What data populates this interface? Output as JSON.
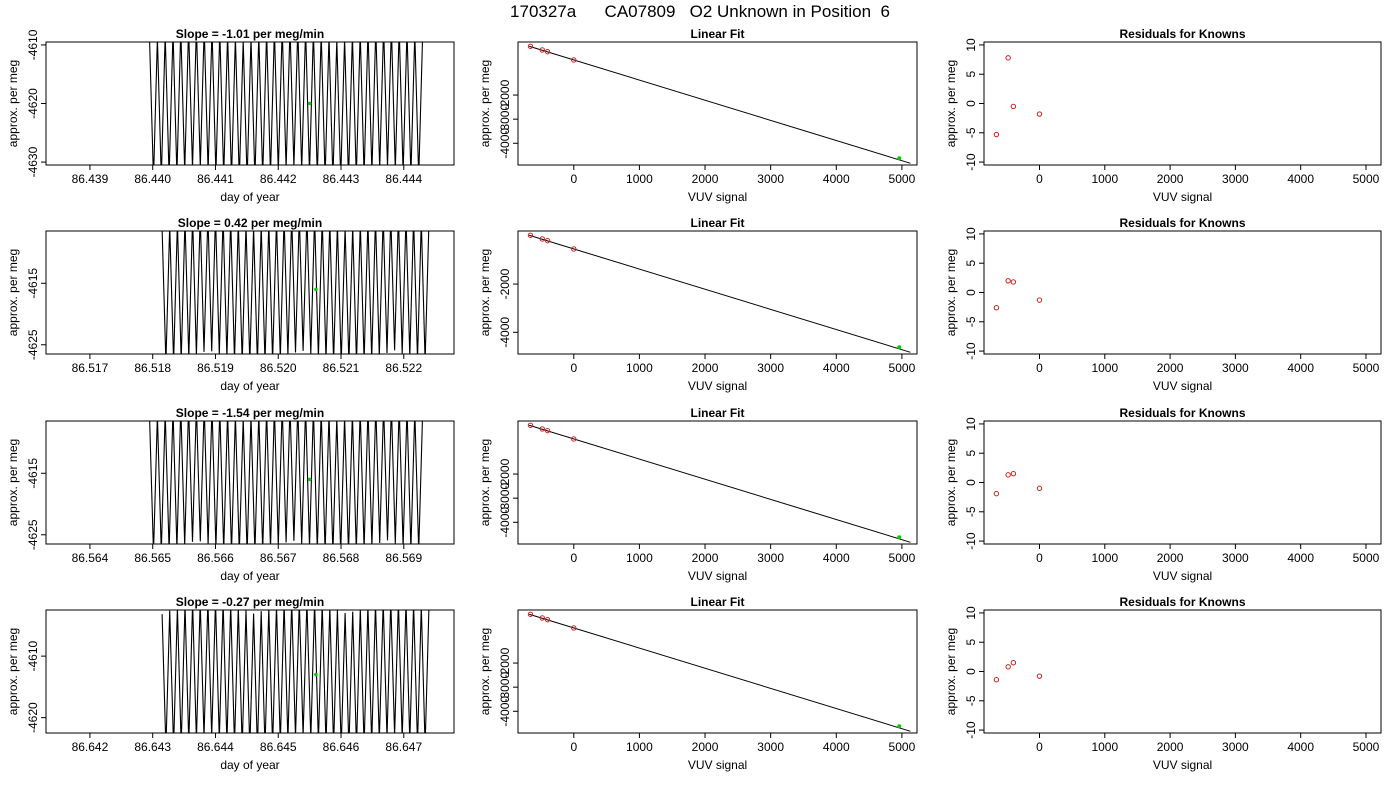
{
  "page_title": "170327a      CA07809   O2 Unknown in Position  6",
  "colors": {
    "trace": "#000000",
    "unknown_point": "#00cc00",
    "known_point": "#cc2222",
    "frame": "#000000"
  },
  "chart_data": [
    {
      "type": "line",
      "title": "Slope =  -1.01  per meg/min",
      "xlabel": "day of year",
      "ylabel": "approx. per meg",
      "xlim": [
        86.4383,
        86.4448
      ],
      "ylim": [
        -4630.5,
        -4609.5
      ],
      "x_ticks": [
        "86.439",
        "86.440",
        "86.441",
        "86.442",
        "86.443",
        "86.444"
      ],
      "x_tick_values": [
        86.439,
        86.44,
        86.441,
        86.442,
        86.443,
        86.444
      ],
      "y_ticks": [
        "-4610",
        "-4620",
        "-4630"
      ],
      "y_tick_values": [
        -4610,
        -4620,
        -4630
      ],
      "series": [
        {
          "x_start": 86.43995,
          "x_end": 86.4443,
          "y_center": -4620,
          "amplitude": 13
        }
      ],
      "highlight": {
        "x": 86.4425,
        "y": -4620
      }
    },
    {
      "type": "scatter",
      "title": "Linear Fit",
      "xlabel": "VUV signal",
      "ylabel": "approx. per meg",
      "xlim": [
        -850,
        5230
      ],
      "ylim": [
        -4900,
        200
      ],
      "x_ticks": [
        "0",
        "1000",
        "2000",
        "3000",
        "4000",
        "5000"
      ],
      "x_tick_values": [
        0,
        1000,
        2000,
        3000,
        4000,
        5000
      ],
      "y_ticks": [
        "-2000",
        "-3000",
        "-4000"
      ],
      "y_tick_values": [
        -2000,
        -3000,
        -4000
      ],
      "fit_line": {
        "x": [
          -680,
          5130
        ],
        "y": [
          25,
          -4830
        ]
      },
      "series": [
        {
          "x": [
            -660,
            -480,
            -400,
            0
          ],
          "y": [
            23,
            -130,
            -200,
            -545
          ]
        }
      ],
      "highlight": {
        "x": 4960,
        "y": -4620
      }
    },
    {
      "type": "scatter",
      "title": "Residuals for Knowns",
      "xlabel": "VUV signal",
      "ylabel": "approx. per meg",
      "xlim": [
        -850,
        5230
      ],
      "ylim": [
        -10.5,
        10.5
      ],
      "x_ticks": [
        "0",
        "1000",
        "2000",
        "3000",
        "4000",
        "5000"
      ],
      "x_tick_values": [
        0,
        1000,
        2000,
        3000,
        4000,
        5000
      ],
      "y_ticks": [
        "10",
        "5",
        "0",
        "-5",
        "-10"
      ],
      "y_tick_values": [
        10,
        5,
        0,
        -5,
        -10
      ],
      "series": [
        {
          "x": [
            -660,
            -480,
            -400,
            0
          ],
          "y": [
            -5.3,
            7.8,
            -0.5,
            -1.8
          ]
        }
      ]
    },
    {
      "type": "line",
      "title": "Slope =  0.42  per meg/min",
      "xlabel": "day of year",
      "ylabel": "approx. per meg",
      "xlim": [
        86.5163,
        86.5228
      ],
      "ylim": [
        -4626.5,
        -4606.5
      ],
      "x_ticks": [
        "86.517",
        "86.518",
        "86.519",
        "86.520",
        "86.521",
        "86.522"
      ],
      "x_tick_values": [
        86.517,
        86.518,
        86.519,
        86.52,
        86.521,
        86.522
      ],
      "y_ticks": [
        "-4615",
        "-4625"
      ],
      "y_tick_values": [
        -4615,
        -4625
      ],
      "series": [
        {
          "x_start": 86.51815,
          "x_end": 86.5224,
          "y_center": -4616,
          "amplitude": 12
        }
      ],
      "highlight": {
        "x": 86.5206,
        "y": -4616
      }
    },
    {
      "type": "scatter",
      "title": "Linear Fit",
      "xlabel": "VUV signal",
      "ylabel": "approx. per meg",
      "xlim": [
        -850,
        5230
      ],
      "ylim": [
        -4900,
        200
      ],
      "x_ticks": [
        "0",
        "1000",
        "2000",
        "3000",
        "4000",
        "5000"
      ],
      "x_tick_values": [
        0,
        1000,
        2000,
        3000,
        4000,
        5000
      ],
      "y_ticks": [
        "-2000",
        "-4000"
      ],
      "y_tick_values": [
        -2000,
        -4000
      ],
      "fit_line": {
        "x": [
          -680,
          5130
        ],
        "y": [
          25,
          -4830
        ]
      },
      "series": [
        {
          "x": [
            -660,
            -480,
            -400,
            0
          ],
          "y": [
            23,
            -130,
            -200,
            -545
          ]
        }
      ],
      "highlight": {
        "x": 4960,
        "y": -4620
      }
    },
    {
      "type": "scatter",
      "title": "Residuals for Knowns",
      "xlabel": "VUV signal",
      "ylabel": "approx. per meg",
      "xlim": [
        -850,
        5230
      ],
      "ylim": [
        -10.5,
        10.5
      ],
      "x_ticks": [
        "0",
        "1000",
        "2000",
        "3000",
        "4000",
        "5000"
      ],
      "x_tick_values": [
        0,
        1000,
        2000,
        3000,
        4000,
        5000
      ],
      "y_ticks": [
        "10",
        "5",
        "0",
        "-5",
        "-10"
      ],
      "y_tick_values": [
        10,
        5,
        0,
        -5,
        -10
      ],
      "series": [
        {
          "x": [
            -660,
            -480,
            -400,
            0
          ],
          "y": [
            -2.6,
            2.0,
            1.8,
            -1.3
          ]
        }
      ]
    },
    {
      "type": "line",
      "title": "Slope =  -1.54  per meg/min",
      "xlabel": "day of year",
      "ylabel": "approx. per meg",
      "xlim": [
        86.5633,
        86.5698
      ],
      "ylim": [
        -4626.5,
        -4606.5
      ],
      "x_ticks": [
        "86.564",
        "86.565",
        "86.566",
        "86.567",
        "86.568",
        "86.569"
      ],
      "x_tick_values": [
        86.564,
        86.565,
        86.566,
        86.567,
        86.568,
        86.569
      ],
      "y_ticks": [
        "-4615",
        "-4625"
      ],
      "y_tick_values": [
        -4615,
        -4625
      ],
      "series": [
        {
          "x_start": 86.56495,
          "x_end": 86.5693,
          "y_center": -4616,
          "amplitude": 12
        }
      ],
      "highlight": {
        "x": 86.5675,
        "y": -4616
      }
    },
    {
      "type": "scatter",
      "title": "Linear Fit",
      "xlabel": "VUV signal",
      "ylabel": "approx. per meg",
      "xlim": [
        -850,
        5230
      ],
      "ylim": [
        -4900,
        200
      ],
      "x_ticks": [
        "0",
        "1000",
        "2000",
        "3000",
        "4000",
        "5000"
      ],
      "x_tick_values": [
        0,
        1000,
        2000,
        3000,
        4000,
        5000
      ],
      "y_ticks": [
        "-2000",
        "-3000",
        "-4000"
      ],
      "y_tick_values": [
        -2000,
        -3000,
        -4000
      ],
      "fit_line": {
        "x": [
          -680,
          5130
        ],
        "y": [
          25,
          -4830
        ]
      },
      "series": [
        {
          "x": [
            -660,
            -480,
            -400,
            0
          ],
          "y": [
            23,
            -130,
            -200,
            -545
          ]
        }
      ],
      "highlight": {
        "x": 4960,
        "y": -4620
      }
    },
    {
      "type": "scatter",
      "title": "Residuals for Knowns",
      "xlabel": "VUV signal",
      "ylabel": "approx. per meg",
      "xlim": [
        -850,
        5230
      ],
      "ylim": [
        -10.5,
        10.5
      ],
      "x_ticks": [
        "0",
        "1000",
        "2000",
        "3000",
        "4000",
        "5000"
      ],
      "x_tick_values": [
        0,
        1000,
        2000,
        3000,
        4000,
        5000
      ],
      "y_ticks": [
        "10",
        "5",
        "0",
        "-5",
        "-10"
      ],
      "y_tick_values": [
        10,
        5,
        0,
        -5,
        -10
      ],
      "series": [
        {
          "x": [
            -660,
            -480,
            -400,
            0
          ],
          "y": [
            -1.9,
            1.3,
            1.5,
            -1.0
          ]
        }
      ]
    },
    {
      "type": "line",
      "title": "Slope =  -0.27  per meg/min",
      "xlabel": "day of year",
      "ylabel": "approx. per meg",
      "xlim": [
        86.6413,
        86.6478
      ],
      "ylim": [
        -4622.5,
        -4602.5
      ],
      "x_ticks": [
        "86.642",
        "86.643",
        "86.644",
        "86.645",
        "86.646",
        "86.647"
      ],
      "x_tick_values": [
        86.642,
        86.643,
        86.644,
        86.645,
        86.646,
        86.647
      ],
      "y_ticks": [
        "-4610",
        "-4620"
      ],
      "y_tick_values": [
        -4610,
        -4620
      ],
      "series": [
        {
          "x_start": 86.64315,
          "x_end": 86.6474,
          "y_center": -4613,
          "amplitude": 12
        }
      ],
      "highlight": {
        "x": 86.6456,
        "y": -4613
      }
    },
    {
      "type": "scatter",
      "title": "Linear Fit",
      "xlabel": "VUV signal",
      "ylabel": "approx. per meg",
      "xlim": [
        -850,
        5230
      ],
      "ylim": [
        -4900,
        200
      ],
      "x_ticks": [
        "0",
        "1000",
        "2000",
        "3000",
        "4000",
        "5000"
      ],
      "x_tick_values": [
        0,
        1000,
        2000,
        3000,
        4000,
        5000
      ],
      "y_ticks": [
        "-2000",
        "-3000",
        "-4000"
      ],
      "y_tick_values": [
        -2000,
        -3000,
        -4000
      ],
      "fit_line": {
        "x": [
          -680,
          5130
        ],
        "y": [
          25,
          -4830
        ]
      },
      "series": [
        {
          "x": [
            -660,
            -480,
            -400,
            0
          ],
          "y": [
            23,
            -130,
            -200,
            -545
          ]
        }
      ],
      "highlight": {
        "x": 4960,
        "y": -4620
      }
    },
    {
      "type": "scatter",
      "title": "Residuals for Knowns",
      "xlabel": "VUV signal",
      "ylabel": "approx. per meg",
      "xlim": [
        -850,
        5230
      ],
      "ylim": [
        -10.5,
        10.5
      ],
      "x_ticks": [
        "0",
        "1000",
        "2000",
        "3000",
        "4000",
        "5000"
      ],
      "x_tick_values": [
        0,
        1000,
        2000,
        3000,
        4000,
        5000
      ],
      "y_ticks": [
        "10",
        "5",
        "0",
        "-5",
        "-10"
      ],
      "y_tick_values": [
        10,
        5,
        0,
        -5,
        -10
      ],
      "series": [
        {
          "x": [
            -660,
            -480,
            -400,
            0
          ],
          "y": [
            -1.4,
            0.8,
            1.5,
            -0.8
          ]
        }
      ]
    }
  ]
}
